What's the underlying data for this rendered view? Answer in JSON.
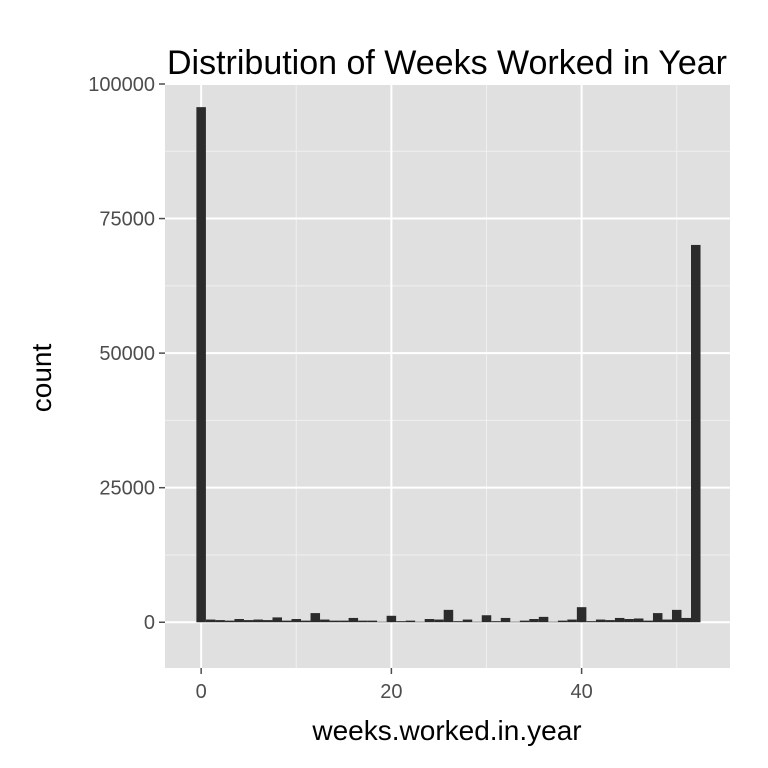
{
  "chart_data": {
    "type": "bar",
    "title": "Distribution of Weeks Worked in Year",
    "xlabel": "weeks.worked.in.year",
    "ylabel": "count",
    "xlim": [
      -3.8,
      55.6
    ],
    "ylim": [
      -8500,
      100000
    ],
    "x_ticks": [
      0,
      20,
      40
    ],
    "y_ticks": [
      0,
      25000,
      50000,
      75000,
      100000
    ],
    "x_tick_labels": [
      "0",
      "20",
      "40"
    ],
    "y_tick_labels": [
      "0",
      "25000",
      "50000",
      "75000",
      "100000"
    ],
    "bin_width": 1,
    "grid": true,
    "colors": {
      "panel": "#e0e0e0",
      "grid_major": "#ffffff",
      "grid_minor": "#f0f0f0",
      "bar": "#2b2b2b",
      "tick": "#4d4d4d"
    },
    "bins": [
      0,
      1,
      2,
      3,
      4,
      5,
      6,
      7,
      8,
      9,
      10,
      11,
      12,
      13,
      14,
      15,
      16,
      17,
      18,
      19,
      20,
      21,
      22,
      23,
      24,
      25,
      26,
      27,
      28,
      29,
      30,
      31,
      32,
      33,
      34,
      35,
      36,
      37,
      38,
      39,
      40,
      41,
      42,
      43,
      44,
      45,
      46,
      47,
      48,
      49,
      50,
      51,
      52
    ],
    "values": [
      95700,
      500,
      400,
      300,
      600,
      400,
      500,
      400,
      900,
      300,
      600,
      300,
      1700,
      500,
      300,
      300,
      800,
      300,
      300,
      100,
      1200,
      200,
      300,
      100,
      600,
      500,
      2300,
      200,
      500,
      100,
      1300,
      200,
      800,
      100,
      300,
      600,
      1000,
      100,
      300,
      500,
      2800,
      200,
      500,
      400,
      800,
      600,
      700,
      300,
      1700,
      500,
      2300,
      800,
      70100
    ]
  }
}
